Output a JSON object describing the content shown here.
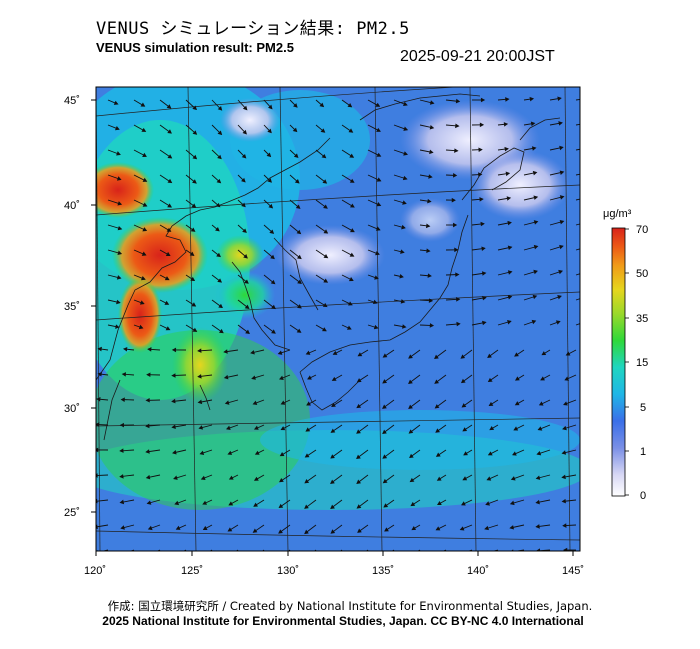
{
  "header": {
    "title_ja": "VENUS シミュレーション結果: PM2.5",
    "title_en": "VENUS simulation result: PM2.5",
    "timestamp": "2025-09-21 20:00JST"
  },
  "map": {
    "lat_labels": [
      "45˚",
      "40˚",
      "35˚",
      "30˚",
      "25˚"
    ],
    "lon_labels": [
      "120˚",
      "125˚",
      "130˚",
      "135˚",
      "140˚",
      "145˚"
    ],
    "wind_arrows": "shown",
    "colors": {
      "ocean_base": "#3f7ee0",
      "high_concentration": "#e83a1e"
    }
  },
  "colorbar": {
    "unit": "μg/m³",
    "ticks": [
      "70",
      "50",
      "35",
      "15",
      "5",
      "1",
      "0"
    ],
    "colors": [
      "#f0f0ff",
      "#c9c9ef",
      "#7a8fe6",
      "#3a7fe8",
      "#1fb6e6",
      "#1fd6a0",
      "#2fd83a",
      "#9ad82a",
      "#e6d61e",
      "#f09b18",
      "#ec5a16",
      "#d8231a"
    ]
  },
  "footer": {
    "credit_ja": "作成: 国立環境研究所 / Created by National Institute for Environmental Studies, Japan.",
    "credit_en": "2025 National Institute for Environmental Studies, Japan. CC BY-NC 4.0 International"
  }
}
